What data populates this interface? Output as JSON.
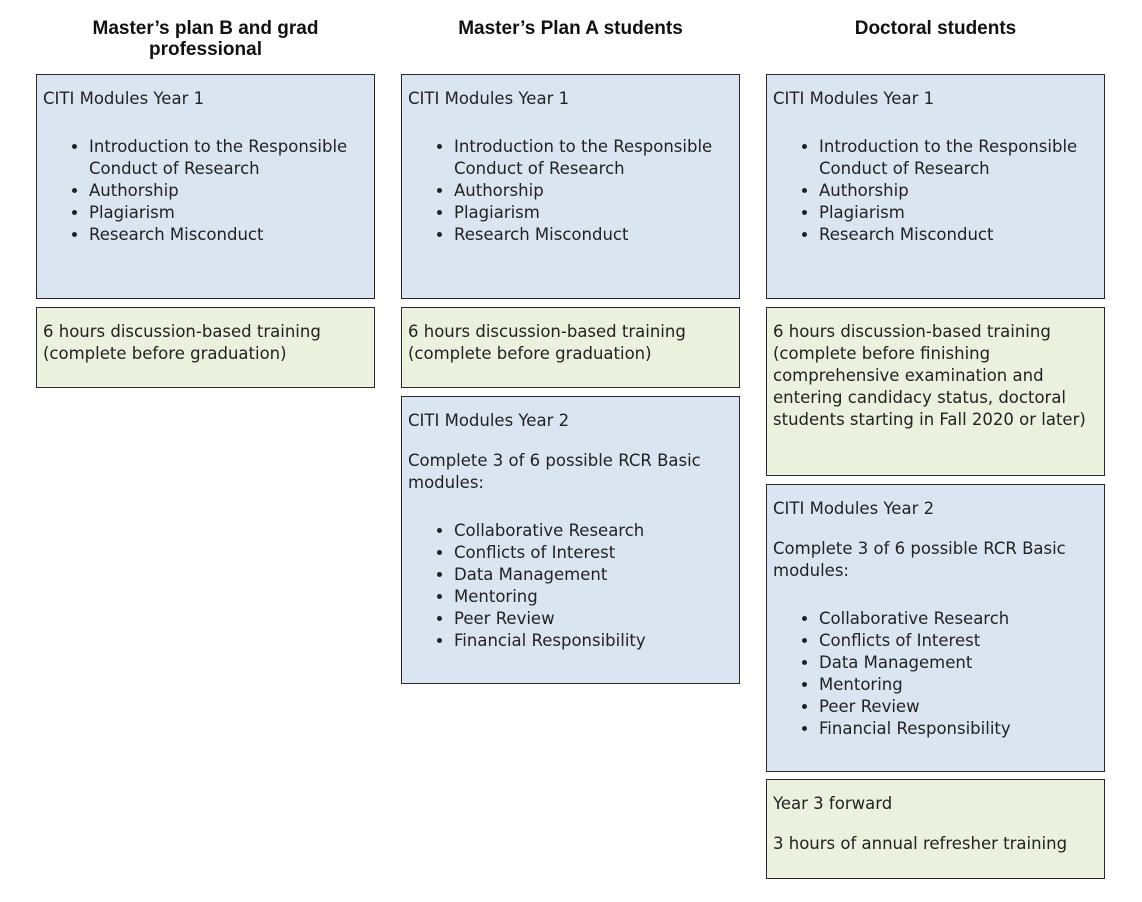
{
  "columns": [
    {
      "header": "Master’s plan B and grad professional",
      "boxes": [
        {
          "color": "blue",
          "paragraphs": [
            "CITI Modules Year 1"
          ],
          "items": [
            "Introduction to the Responsible Conduct of Research",
            "Authorship",
            "Plagiarism",
            "Research Misconduct"
          ]
        },
        {
          "color": "green",
          "paragraphs": [
            "6 hours discussion-based training (complete before graduation)"
          ],
          "items": []
        }
      ]
    },
    {
      "header": "Master’s Plan A students",
      "boxes": [
        {
          "color": "blue",
          "paragraphs": [
            "CITI Modules Year 1"
          ],
          "items": [
            "Introduction to the Responsible Conduct of Research",
            "Authorship",
            "Plagiarism",
            "Research Misconduct"
          ]
        },
        {
          "color": "green",
          "paragraphs": [
            "6 hours discussion-based training (complete before graduation)"
          ],
          "items": []
        },
        {
          "color": "blue",
          "paragraphs": [
            "CITI Modules Year 2",
            "Complete 3 of 6 possible RCR Basic modules:"
          ],
          "items": [
            "Collaborative Research",
            "Conflicts of Interest",
            "Data Management",
            "Mentoring",
            "Peer Review",
            "Financial Responsibility"
          ]
        }
      ]
    },
    {
      "header": "Doctoral students",
      "boxes": [
        {
          "color": "blue",
          "paragraphs": [
            "CITI Modules Year 1"
          ],
          "items": [
            "Introduction to the Responsible Conduct of Research",
            "Authorship",
            "Plagiarism",
            "Research Misconduct"
          ]
        },
        {
          "color": "green",
          "paragraphs": [
            "6 hours discussion-based training (complete before finishing comprehensive examination and entering candidacy status, doctoral students starting in Fall 2020 or later)"
          ],
          "items": []
        },
        {
          "color": "blue",
          "paragraphs": [
            "CITI Modules Year 2",
            "Complete 3 of 6 possible RCR Basic modules:"
          ],
          "items": [
            "Collaborative Research",
            "Conflicts of Interest",
            "Data Management",
            "Mentoring",
            "Peer Review",
            "Financial Responsibility"
          ]
        },
        {
          "color": "green",
          "paragraphs": [
            "Year 3 forward",
            "3 hours of annual refresher training"
          ],
          "items": []
        }
      ]
    }
  ],
  "colors": {
    "blue_box": "#dbe5f1",
    "green_box": "#ebf1de",
    "border": "#2a2a2a"
  }
}
